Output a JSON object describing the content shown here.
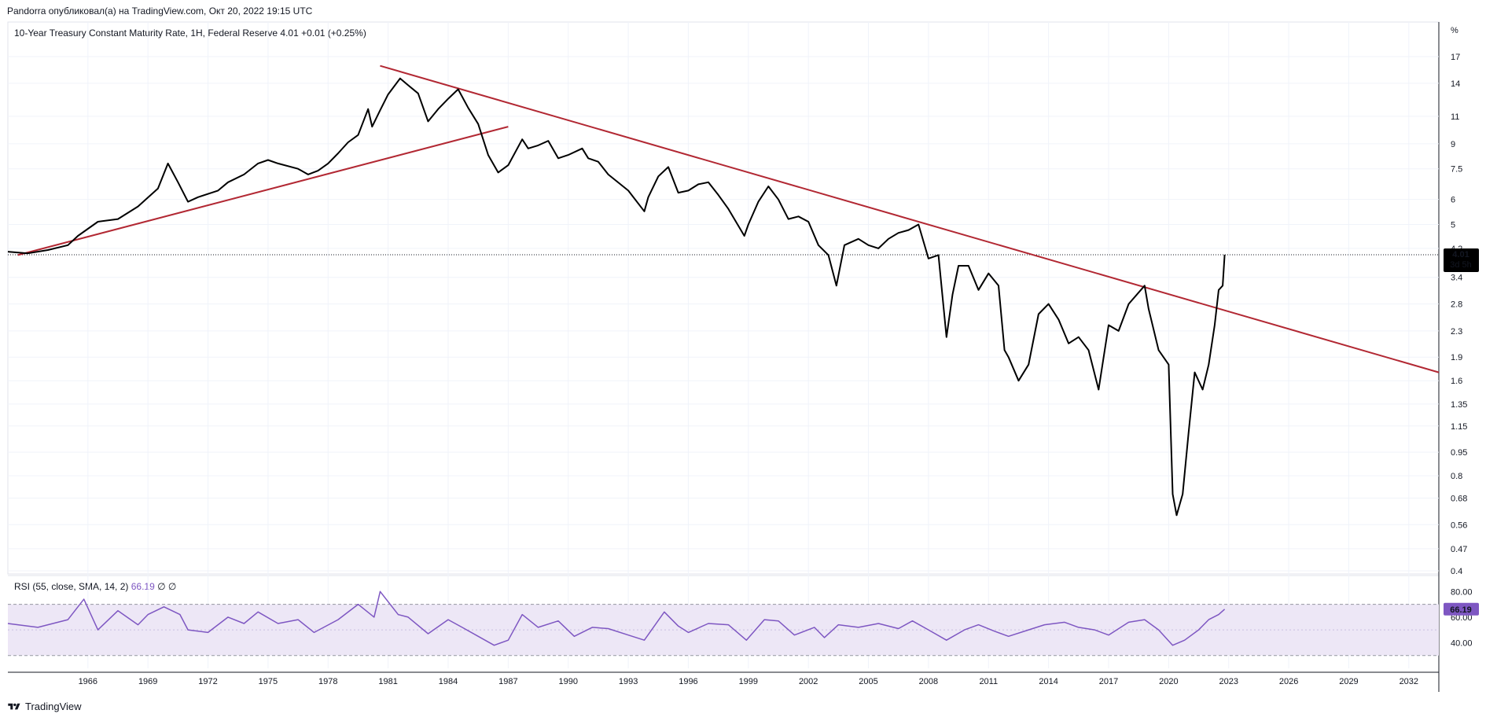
{
  "header": {
    "author_line": "Pandorra опубликовал(а) на TradingView.com, Окт 20, 2022 19:15 UTC"
  },
  "main_legend": {
    "symbol": "10-Year Treasury Constant Maturity Rate, 1H, Federal Reserve",
    "last": "4.01",
    "change": "+0.01 (+0.25%)"
  },
  "rsi_legend": {
    "label": "RSI (55, close, SMA, 14, 2)",
    "value": "66.19",
    "extra": "∅ ∅"
  },
  "price_axis": {
    "unit": "%",
    "ticks": [
      "17",
      "14",
      "11",
      "9",
      "7.5",
      "6",
      "5",
      "4.2",
      "3.4",
      "2.8",
      "2.3",
      "1.9",
      "1.6",
      "1.35",
      "1.15",
      "0.95",
      "0.8",
      "0.68",
      "0.56",
      "0.47",
      "0.4"
    ],
    "last_label": "4.01",
    "countdown": "3d 5h"
  },
  "rsi_axis": {
    "ticks": [
      "80.00",
      "60.00",
      "40.00"
    ],
    "last_label": "66.19"
  },
  "time_axis": {
    "ticks": [
      "1966",
      "1969",
      "1972",
      "1975",
      "1978",
      "1981",
      "1984",
      "1987",
      "1990",
      "1993",
      "1996",
      "1999",
      "2002",
      "2005",
      "2008",
      "2011",
      "2014",
      "2017",
      "2020",
      "2023",
      "2026",
      "2029",
      "2032"
    ]
  },
  "colors": {
    "price_line": "#000000",
    "trendline": "#b22833",
    "rsi_line": "#7e57c2",
    "rsi_band": "#ede7f6",
    "grid": "#f0f3fa",
    "badge_bg": "#000000",
    "rsi_badge_bg": "#7e57c2"
  },
  "footer": {
    "brand": "TradingView",
    "logo_icon": "tradingview-logo-icon"
  },
  "chart_data": [
    {
      "type": "line",
      "xlabel": "",
      "ylabel": "%",
      "y_scale": "log",
      "ylim": [
        0.4,
        17
      ],
      "xlim": [
        1962.0,
        2033.5
      ],
      "grid": true,
      "series": [
        {
          "x": [
            1962.0,
            1963.0,
            1964.0,
            1965.0,
            1965.5,
            1966.5,
            1967.5,
            1968.5,
            1969.5,
            1970.0,
            1970.5,
            1971.0,
            1971.5,
            1972.5,
            1973.0,
            1973.8,
            1974.5,
            1975.0,
            1975.5,
            1976.5,
            1977.0,
            1977.5,
            1978.0,
            1978.5,
            1979.0,
            1979.5,
            1980.0,
            1980.2,
            1980.6,
            1981.0,
            1981.6,
            1982.0,
            1982.5,
            1983.0,
            1983.5,
            1984.0,
            1984.5,
            1985.0,
            1985.5,
            1986.0,
            1986.5,
            1987.0,
            1987.7,
            1988.0,
            1988.5,
            1989.0,
            1989.5,
            1990.0,
            1990.7,
            1991.0,
            1991.5,
            1992.0,
            1993.0,
            1993.8,
            1994.0,
            1994.5,
            1995.0,
            1995.5,
            1996.0,
            1996.5,
            1997.0,
            1997.5,
            1998.0,
            1998.8,
            1999.0,
            1999.5,
            2000.0,
            2000.5,
            2001.0,
            2001.5,
            2002.0,
            2002.5,
            2003.0,
            2003.4,
            2003.8,
            2004.5,
            2005.0,
            2005.5,
            2006.0,
            2006.5,
            2007.0,
            2007.5,
            2008.0,
            2008.5,
            2008.9,
            2009.2,
            2009.5,
            2010.0,
            2010.5,
            2011.0,
            2011.5,
            2011.8,
            2012.0,
            2012.5,
            2013.0,
            2013.5,
            2014.0,
            2014.5,
            2015.0,
            2015.5,
            2016.0,
            2016.5,
            2017.0,
            2017.5,
            2018.0,
            2018.8,
            2019.0,
            2019.5,
            2020.0,
            2020.2,
            2020.4,
            2020.7,
            2021.0,
            2021.3,
            2021.7,
            2022.0,
            2022.3,
            2022.5,
            2022.7,
            2022.8
          ],
          "y": [
            4.1,
            4.05,
            4.15,
            4.3,
            4.6,
            5.1,
            5.2,
            5.7,
            6.5,
            7.8,
            6.8,
            5.9,
            6.1,
            6.4,
            6.8,
            7.2,
            7.8,
            8.0,
            7.8,
            7.5,
            7.2,
            7.4,
            7.8,
            8.4,
            9.1,
            9.6,
            11.6,
            10.2,
            11.5,
            12.9,
            14.5,
            13.8,
            13.0,
            10.6,
            11.6,
            12.5,
            13.4,
            11.7,
            10.4,
            8.3,
            7.3,
            7.7,
            9.3,
            8.7,
            8.9,
            9.2,
            8.1,
            8.3,
            8.7,
            8.1,
            7.9,
            7.2,
            6.4,
            5.5,
            6.1,
            7.1,
            7.6,
            6.3,
            6.4,
            6.7,
            6.8,
            6.2,
            5.6,
            4.6,
            5.0,
            5.9,
            6.6,
            6.0,
            5.2,
            5.3,
            5.1,
            4.3,
            4.0,
            3.2,
            4.3,
            4.5,
            4.3,
            4.2,
            4.5,
            4.7,
            4.8,
            5.0,
            3.9,
            4.0,
            2.2,
            3.0,
            3.7,
            3.7,
            3.1,
            3.5,
            3.2,
            2.0,
            1.9,
            1.6,
            1.8,
            2.6,
            2.8,
            2.5,
            2.1,
            2.2,
            2.0,
            1.5,
            2.4,
            2.3,
            2.8,
            3.2,
            2.7,
            2.0,
            1.8,
            0.7,
            0.6,
            0.7,
            1.1,
            1.7,
            1.5,
            1.8,
            2.4,
            3.1,
            3.2,
            4.01
          ]
        }
      ],
      "trendlines": [
        {
          "x": [
            1962.5,
            1987.0
          ],
          "y": [
            4.0,
            10.2
          ]
        },
        {
          "x": [
            1980.6,
            2033.5
          ],
          "y": [
            15.9,
            1.7
          ]
        }
      ],
      "last_value": 4.01
    },
    {
      "type": "line",
      "title": "RSI (55, close, SMA, 14, 2)",
      "ylim": [
        20,
        90
      ],
      "bands": [
        30,
        70
      ],
      "series": [
        {
          "x": [
            1962.0,
            1963.5,
            1965.0,
            1965.8,
            1966.5,
            1967.5,
            1968.5,
            1969.0,
            1969.8,
            1970.6,
            1971.0,
            1972.0,
            1973.0,
            1973.8,
            1974.5,
            1975.5,
            1976.5,
            1977.3,
            1978.5,
            1979.5,
            1980.3,
            1980.6,
            1981.5,
            1982.0,
            1983.0,
            1984.0,
            1984.7,
            1985.5,
            1986.3,
            1987.0,
            1987.7,
            1988.5,
            1989.5,
            1990.3,
            1991.2,
            1992.0,
            1993.0,
            1993.8,
            1994.8,
            1995.5,
            1996.0,
            1997.0,
            1998.0,
            1998.9,
            1999.8,
            2000.5,
            2001.3,
            2002.3,
            2002.8,
            2003.5,
            2004.5,
            2005.5,
            2006.5,
            2007.2,
            2008.0,
            2008.9,
            2009.8,
            2010.5,
            2011.3,
            2012.0,
            2013.0,
            2013.8,
            2014.8,
            2015.5,
            2016.3,
            2017.0,
            2018.0,
            2018.8,
            2019.5,
            2020.2,
            2020.8,
            2021.5,
            2022.0,
            2022.5,
            2022.8
          ],
          "y": [
            55,
            52,
            58,
            74,
            50,
            65,
            54,
            62,
            68,
            62,
            50,
            48,
            60,
            55,
            64,
            55,
            58,
            48,
            58,
            70,
            60,
            80,
            62,
            60,
            47,
            58,
            52,
            45,
            38,
            42,
            62,
            52,
            57,
            45,
            52,
            51,
            46,
            42,
            64,
            53,
            48,
            55,
            54,
            42,
            58,
            57,
            46,
            52,
            44,
            54,
            52,
            55,
            51,
            57,
            50,
            42,
            50,
            54,
            49,
            45,
            50,
            54,
            56,
            52,
            50,
            46,
            56,
            58,
            50,
            38,
            42,
            50,
            58,
            62,
            66.19
          ]
        }
      ],
      "last_value": 66.19
    }
  ]
}
